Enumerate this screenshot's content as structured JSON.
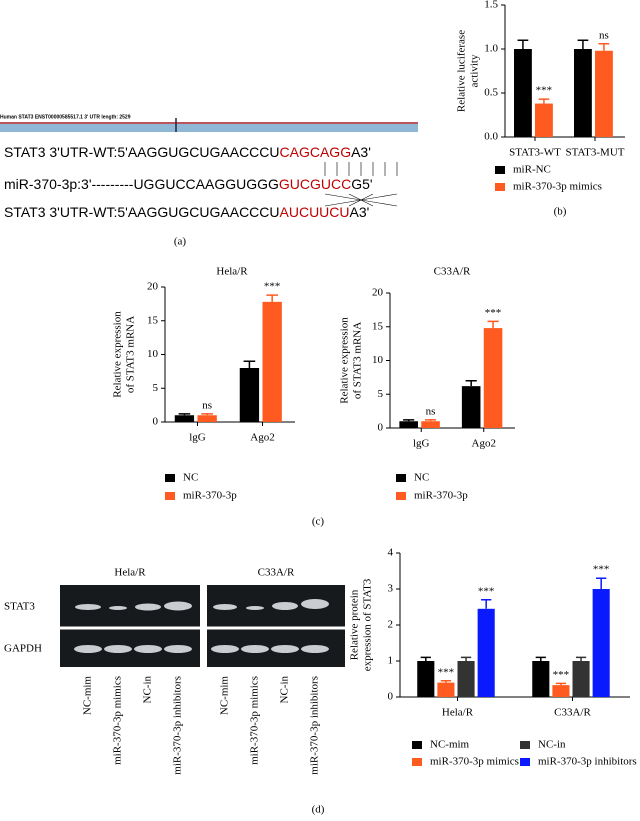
{
  "panel_a": {
    "header": "Human STAT3  ENST00000585517.1  3' UTR length: 2529",
    "lines": [
      [
        "STAT3 3'UTR-WT:5'AAGGUGCUGAACCCU",
        "CAGCAGG",
        "A3'"
      ],
      [
        "miR-370-3p:3'---------UGGUCCAAGGUGGG",
        "GUCGUCC",
        "G5'"
      ],
      [
        "STAT3 3'UTR-WT:5'AAGGUGCUGAACCCU",
        "AUCUUCU",
        "A3'"
      ]
    ]
  },
  "blot": {
    "groups": [
      "Hela/R",
      "C33A/R"
    ],
    "rows": [
      "STAT3",
      "GAPDH"
    ],
    "lanes": [
      "NC-mim",
      "miR-370-3p mimics",
      "NC-in",
      "miR-370-3p inhibitors"
    ]
  },
  "panel_labels": [
    "(a)",
    "(b)",
    "(c)",
    "(d)"
  ],
  "chart_data": [
    {
      "type": "bar",
      "ylabel": [
        "Relative luciferase",
        "activity"
      ],
      "categories": [
        "STAT3-WT",
        "STAT3-MUT"
      ],
      "ylim": [
        0,
        1.5
      ],
      "yticks": [
        {
          "value": 0,
          "label": "0.0"
        },
        0.5,
        {
          "value": 1,
          "label": "1.0"
        },
        1.5
      ],
      "series": [
        {
          "name": "miR-NC",
          "color": "#000000",
          "values": [
            1.0,
            1.0
          ],
          "errors": [
            0.1,
            0.1
          ]
        },
        {
          "name": "miR-370-3p mimics",
          "color": "#ff5a1f",
          "values": [
            0.38,
            0.98
          ],
          "errors": [
            0.05,
            0.08
          ],
          "annotations": [
            "***",
            "ns"
          ]
        }
      ]
    },
    {
      "type": "bar",
      "title": "Hela/R",
      "ylabel": [
        "Relative expression",
        "of STAT3 mRNA"
      ],
      "categories": [
        "lgG",
        "Ago2"
      ],
      "ylim": [
        0,
        20
      ],
      "yticks": [
        0,
        5,
        10,
        15,
        20
      ],
      "series": [
        {
          "name": "NC",
          "color": "#000000",
          "values": [
            1,
            8
          ],
          "errors": [
            0.2,
            1
          ]
        },
        {
          "name": "miR-370-3p",
          "color": "#ff5a1f",
          "values": [
            1,
            17.8
          ],
          "errors": [
            0.2,
            1
          ],
          "annotations": [
            "ns",
            "***"
          ]
        }
      ]
    },
    {
      "type": "bar",
      "title": "C33A/R",
      "ylabel": [
        "Relative expression",
        "of STAT3 mRNA"
      ],
      "categories": [
        "lgG",
        "Ago2"
      ],
      "ylim": [
        0,
        20
      ],
      "yticks": [
        0,
        5,
        10,
        15,
        20
      ],
      "series": [
        {
          "name": "NC",
          "color": "#000000",
          "values": [
            1,
            6.2
          ],
          "errors": [
            0.2,
            0.8
          ]
        },
        {
          "name": "miR-370-3p",
          "color": "#ff5a1f",
          "values": [
            1,
            14.8
          ],
          "errors": [
            0.2,
            1
          ],
          "annotations": [
            "ns",
            "***"
          ]
        }
      ]
    },
    {
      "type": "bar",
      "ylabel": [
        "Relative protein",
        "expression of STAT3"
      ],
      "categories": [
        "Hela/R",
        "C33A/R"
      ],
      "ylim": [
        0,
        4
      ],
      "yticks": [
        0,
        1,
        2,
        3,
        4
      ],
      "series": [
        {
          "name": "NC-mim",
          "color": "#000000",
          "values": [
            1,
            1
          ],
          "errors": [
            0.1,
            0.1
          ]
        },
        {
          "name": "miR-370-3p mimics",
          "color": "#ff5a1f",
          "values": [
            0.4,
            0.33
          ],
          "errors": [
            0.05,
            0.05
          ],
          "annotations": [
            "***",
            "***"
          ]
        },
        {
          "name": "NC-in",
          "color": "#333333",
          "values": [
            1,
            1
          ],
          "errors": [
            0.1,
            0.1
          ]
        },
        {
          "name": "miR-370-3p inhibitors",
          "color": "#0a1aff",
          "values": [
            2.45,
            3.0
          ],
          "errors": [
            0.25,
            0.3
          ],
          "annotations": [
            "***",
            "***"
          ]
        }
      ]
    }
  ]
}
